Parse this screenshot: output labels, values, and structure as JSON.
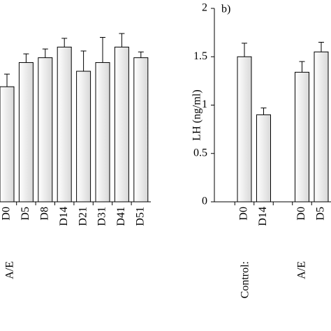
{
  "chart_data": [
    {
      "type": "bar",
      "categories": [
        "D0",
        "D5",
        "D8",
        "D14",
        "D21",
        "D31",
        "D41",
        "D51"
      ],
      "values": [
        1.19,
        1.44,
        1.49,
        1.6,
        1.35,
        1.44,
        1.6,
        1.49
      ],
      "errors": [
        0.13,
        0.09,
        0.09,
        0.09,
        0.21,
        0.26,
        0.14,
        0.06
      ],
      "ylim": [
        0,
        2
      ],
      "group_labels": [
        "A/E"
      ]
    },
    {
      "type": "bar",
      "title": "b)",
      "y_label": "LH (ng/ml)",
      "categories": [
        "D0",
        "D14",
        null,
        "D0",
        "D5"
      ],
      "values": [
        1.5,
        0.9,
        null,
        1.34,
        1.55
      ],
      "errors": [
        0.14,
        0.07,
        null,
        0.11,
        0.1
      ],
      "ylim": [
        0,
        2
      ],
      "yticks": [
        0,
        0.5,
        1,
        1.5,
        2
      ],
      "group_labels": [
        "Control:",
        "A/E"
      ]
    }
  ]
}
